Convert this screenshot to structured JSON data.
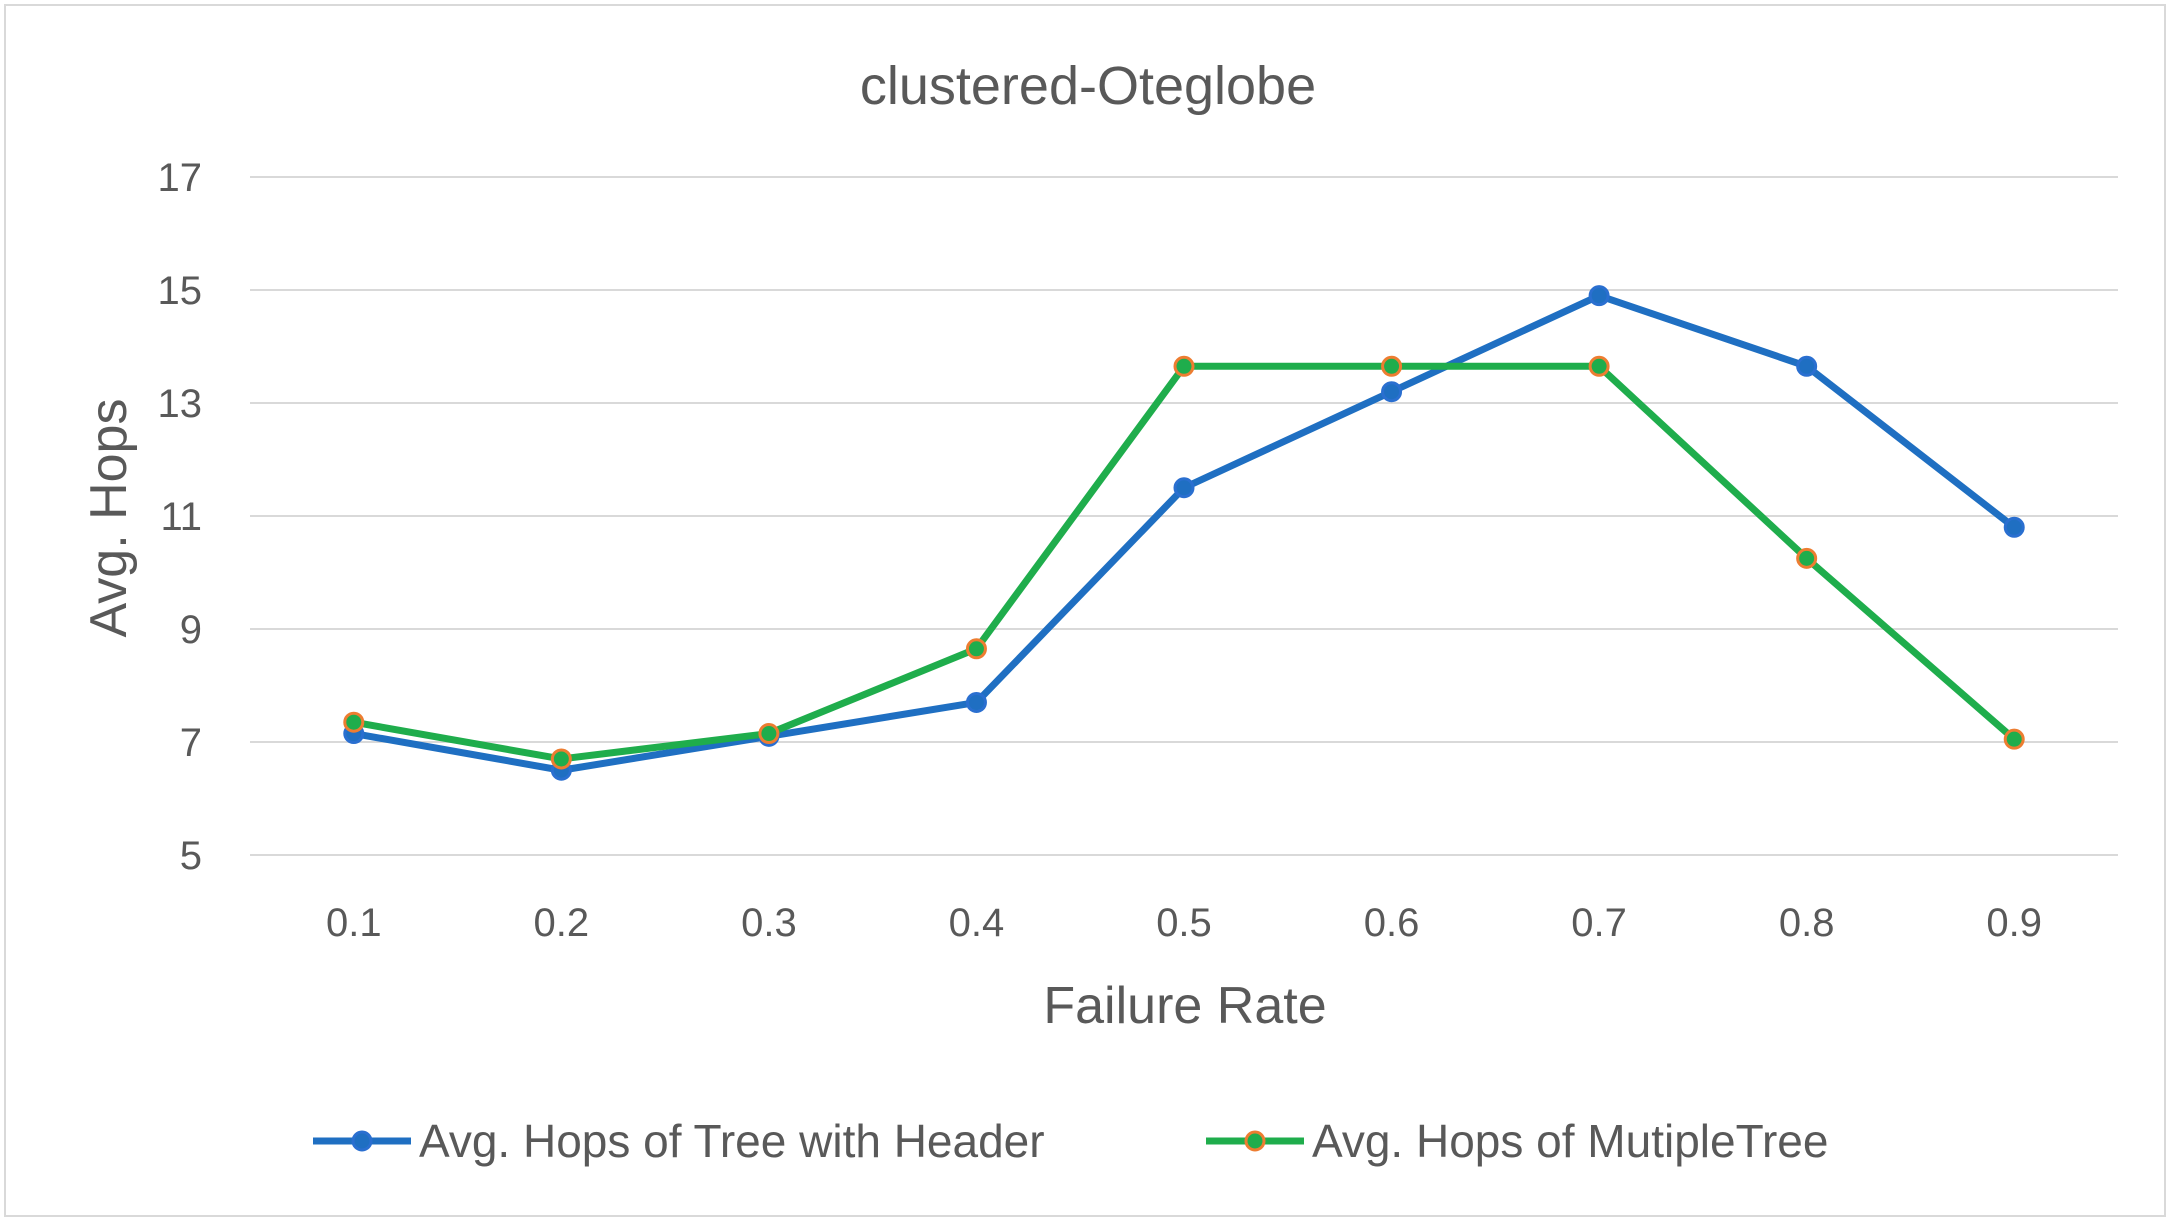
{
  "chart_data": {
    "type": "line",
    "title": "clustered-Oteglobe",
    "xlabel": "Failure Rate",
    "ylabel": "Avg. Hops",
    "categories": [
      "0.1",
      "0.2",
      "0.3",
      "0.4",
      "0.5",
      "0.6",
      "0.7",
      "0.8",
      "0.9"
    ],
    "ylim": [
      5,
      17
    ],
    "yticks": [
      5,
      7,
      9,
      11,
      13,
      15,
      17
    ],
    "grid": "horizontal",
    "legend_position": "bottom",
    "series": [
      {
        "name": "Avg. Hops of Tree with Header",
        "color": "#1f6fc2",
        "marker_fill": "#1f6fc2",
        "marker_stroke": "#2a6fd0",
        "values": [
          7.15,
          6.5,
          7.1,
          7.7,
          11.5,
          13.2,
          14.9,
          13.65,
          10.8
        ]
      },
      {
        "name": "Avg. Hops of MutipleTree",
        "color": "#1fad4c",
        "marker_fill": "#1fad4c",
        "marker_stroke": "#ed7d31",
        "values": [
          7.35,
          6.7,
          7.15,
          8.65,
          13.65,
          13.65,
          13.65,
          10.25,
          7.05
        ]
      }
    ]
  }
}
